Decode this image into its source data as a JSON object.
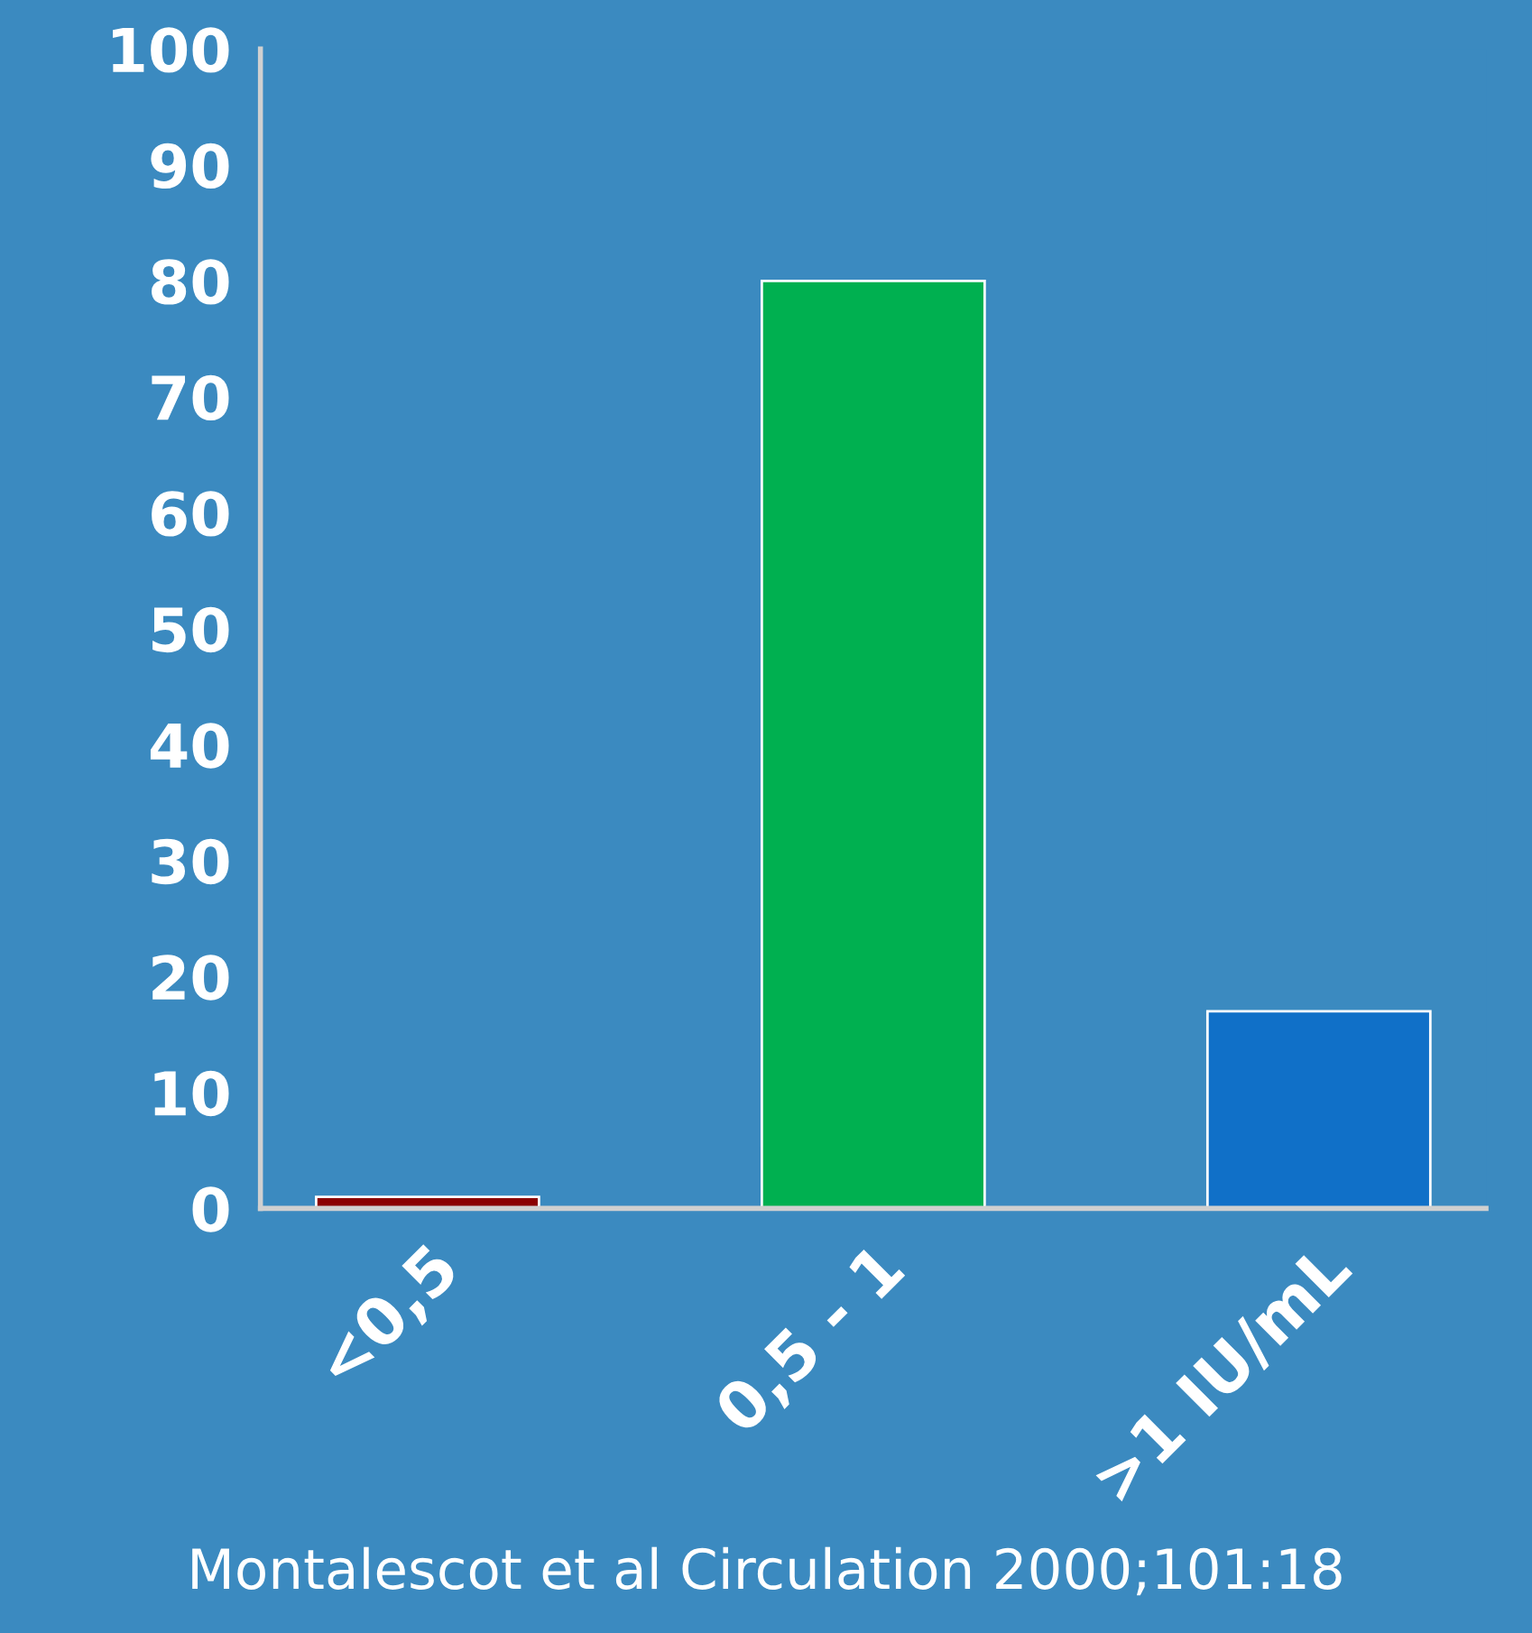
{
  "chart_data": {
    "type": "bar",
    "categories": [
      "<0,5",
      "0,5 - 1",
      ">1 IU/mL"
    ],
    "values": [
      1,
      80,
      17
    ],
    "colors": [
      "#8b0000",
      "#00b050",
      "#1070c8"
    ],
    "ylim": [
      0,
      100
    ],
    "yticks": [
      0,
      10,
      20,
      30,
      40,
      50,
      60,
      70,
      80,
      90,
      100
    ],
    "grid": false,
    "annotations": [
      "Montalescot et al Circulation 2000;101:18"
    ]
  }
}
